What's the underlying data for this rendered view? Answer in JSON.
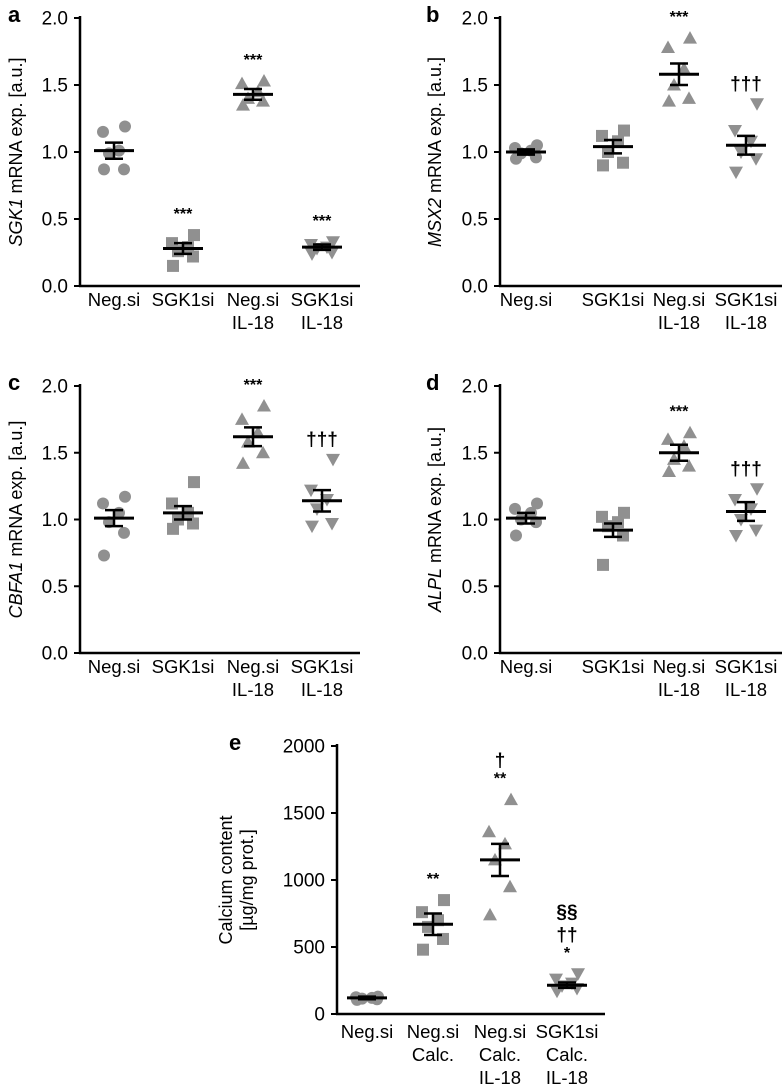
{
  "chart_data": [
    {
      "panel": "a",
      "type": "scatter",
      "ylabel_italic": "SGK1",
      "ylabel_rest": " mRNA exp. [a.u.]",
      "ylim": [
        0,
        2.0
      ],
      "yticks": [
        "0.0",
        "0.5",
        "1.0",
        "1.5",
        "2.0"
      ],
      "categories": [
        [
          "Neg.si"
        ],
        [
          "SGK1si"
        ],
        [
          "Neg.si",
          "IL-18"
        ],
        [
          "SGK1si",
          "IL-18"
        ]
      ],
      "groups": [
        {
          "shape": "circle",
          "mean": 1.01,
          "sem": 0.06,
          "points": [
            1.19,
            1.15,
            1.01,
            0.99,
            0.87,
            0.87
          ],
          "annot": []
        },
        {
          "shape": "square",
          "mean": 0.28,
          "sem": 0.04,
          "points": [
            0.38,
            0.32,
            0.29,
            0.26,
            0.22,
            0.15
          ],
          "annot": [
            "***"
          ]
        },
        {
          "shape": "triangle-up",
          "mean": 1.43,
          "sem": 0.04,
          "points": [
            1.53,
            1.51,
            1.45,
            1.4,
            1.38,
            1.35
          ],
          "annot": [
            "***"
          ]
        },
        {
          "shape": "triangle-down",
          "mean": 0.29,
          "sem": 0.02,
          "points": [
            0.33,
            0.31,
            0.29,
            0.28,
            0.25,
            0.24
          ],
          "annot": [
            "***"
          ]
        }
      ]
    },
    {
      "panel": "b",
      "type": "scatter",
      "ylabel_italic": "MSX2",
      "ylabel_rest": " mRNA exp. [a.u.]",
      "ylim": [
        0,
        2.0
      ],
      "yticks": [
        "0.0",
        "0.5",
        "1.0",
        "1.5",
        "2.0"
      ],
      "categories": [
        [
          "Neg.si"
        ],
        [
          "SGK1si"
        ],
        [
          "Neg.si",
          "IL-18"
        ],
        [
          "SGK1si",
          "IL-18"
        ]
      ],
      "groups": [
        {
          "shape": "circle",
          "mean": 1.0,
          "sem": 0.02,
          "points": [
            1.05,
            1.03,
            1.01,
            0.99,
            0.96,
            0.95
          ],
          "annot": []
        },
        {
          "shape": "square",
          "mean": 1.04,
          "sem": 0.05,
          "points": [
            1.16,
            1.12,
            1.08,
            1.0,
            0.92,
            0.9
          ],
          "annot": []
        },
        {
          "shape": "triangle-up",
          "mean": 1.58,
          "sem": 0.08,
          "points": [
            1.85,
            1.78,
            1.62,
            1.5,
            1.4,
            1.38
          ],
          "annot": [
            "***"
          ]
        },
        {
          "shape": "triangle-down",
          "mean": 1.05,
          "sem": 0.07,
          "points": [
            1.36,
            1.16,
            1.08,
            1.0,
            0.95,
            0.85
          ],
          "annot": [
            "†††"
          ]
        }
      ]
    },
    {
      "panel": "c",
      "type": "scatter",
      "ylabel_italic": "CBFA1",
      "ylabel_rest": " mRNA exp. [a.u.]",
      "ylim": [
        0,
        2.0
      ],
      "yticks": [
        "0.0",
        "0.5",
        "1.0",
        "1.5",
        "2.0"
      ],
      "categories": [
        [
          "Neg.si"
        ],
        [
          "SGK1si"
        ],
        [
          "Neg.si",
          "IL-18"
        ],
        [
          "SGK1si",
          "IL-18"
        ]
      ],
      "groups": [
        {
          "shape": "circle",
          "mean": 1.01,
          "sem": 0.06,
          "points": [
            1.17,
            1.12,
            1.05,
            0.98,
            0.9,
            0.73
          ],
          "annot": []
        },
        {
          "shape": "square",
          "mean": 1.05,
          "sem": 0.05,
          "points": [
            1.28,
            1.12,
            1.05,
            1.0,
            0.97,
            0.93
          ],
          "annot": []
        },
        {
          "shape": "triangle-up",
          "mean": 1.62,
          "sem": 0.07,
          "points": [
            1.85,
            1.75,
            1.65,
            1.58,
            1.5,
            1.42
          ],
          "annot": [
            "***"
          ]
        },
        {
          "shape": "triangle-down",
          "mean": 1.14,
          "sem": 0.08,
          "points": [
            1.45,
            1.22,
            1.15,
            1.08,
            0.97,
            0.95
          ],
          "annot": [
            "†††"
          ]
        }
      ]
    },
    {
      "panel": "d",
      "type": "scatter",
      "ylabel_italic": "ALPL",
      "ylabel_rest": " mRNA exp. [a.u.]",
      "ylim": [
        0,
        2.0
      ],
      "yticks": [
        "0.0",
        "0.5",
        "1.0",
        "1.5",
        "2.0"
      ],
      "categories": [
        [
          "Neg.si"
        ],
        [
          "SGK1si"
        ],
        [
          "Neg.si",
          "IL-18"
        ],
        [
          "SGK1si",
          "IL-18"
        ]
      ],
      "groups": [
        {
          "shape": "circle",
          "mean": 1.01,
          "sem": 0.04,
          "points": [
            1.12,
            1.08,
            1.05,
            1.0,
            0.98,
            0.88
          ],
          "annot": []
        },
        {
          "shape": "square",
          "mean": 0.92,
          "sem": 0.05,
          "points": [
            1.05,
            1.02,
            0.98,
            0.95,
            0.88,
            0.66
          ],
          "annot": []
        },
        {
          "shape": "triangle-up",
          "mean": 1.5,
          "sem": 0.06,
          "points": [
            1.65,
            1.6,
            1.55,
            1.45,
            1.4,
            1.36
          ],
          "annot": [
            "***"
          ]
        },
        {
          "shape": "triangle-down",
          "mean": 1.06,
          "sem": 0.07,
          "points": [
            1.23,
            1.15,
            1.08,
            1.0,
            0.92,
            0.88
          ],
          "annot": [
            "†††"
          ]
        }
      ]
    },
    {
      "panel": "e",
      "type": "scatter",
      "ylabel_lines": [
        "Calcium content",
        "[µg/mg prot.]"
      ],
      "ylim": [
        0,
        2000
      ],
      "yticks": [
        "0",
        "500",
        "1000",
        "1500",
        "2000"
      ],
      "categories": [
        [
          "Neg.si"
        ],
        [
          "Neg.si",
          "Calc."
        ],
        [
          "Neg.si",
          "Calc.",
          "IL-18"
        ],
        [
          "SGK1si",
          "Calc.",
          "IL-18"
        ]
      ],
      "groups": [
        {
          "shape": "circle",
          "mean": 120,
          "sem": 10,
          "points": [
            130,
            125,
            120,
            115,
            110,
            105
          ],
          "annot": []
        },
        {
          "shape": "square",
          "mean": 670,
          "sem": 80,
          "points": [
            850,
            760,
            700,
            650,
            560,
            480
          ],
          "annot": [
            "**"
          ]
        },
        {
          "shape": "triangle-up",
          "mean": 1150,
          "sem": 120,
          "points": [
            1600,
            1360,
            1270,
            1150,
            950,
            740
          ],
          "annot": [
            "**",
            "†"
          ]
        },
        {
          "shape": "triangle-down",
          "mean": 215,
          "sem": 20,
          "points": [
            300,
            260,
            230,
            210,
            190,
            170
          ],
          "annot": [
            "*",
            "††",
            "§§"
          ]
        }
      ]
    }
  ],
  "panel_letters": [
    "a",
    "b",
    "c",
    "d",
    "e"
  ],
  "ylabels": {
    "a_italic": "SGK1",
    "a_rest": " mRNA exp. [a.u.]",
    "b_italic": "MSX2",
    "b_rest": " mRNA exp. [a.u.]",
    "c_italic": "CBFA1",
    "c_rest": " mRNA exp. [a.u.]",
    "d_italic": "ALPL",
    "d_rest": " mRNA exp. [a.u.]",
    "e_line1": "Calcium content",
    "e_line2": "[µg/mg prot.]"
  },
  "colors": {
    "points": "#909090",
    "lines": "#000000"
  }
}
